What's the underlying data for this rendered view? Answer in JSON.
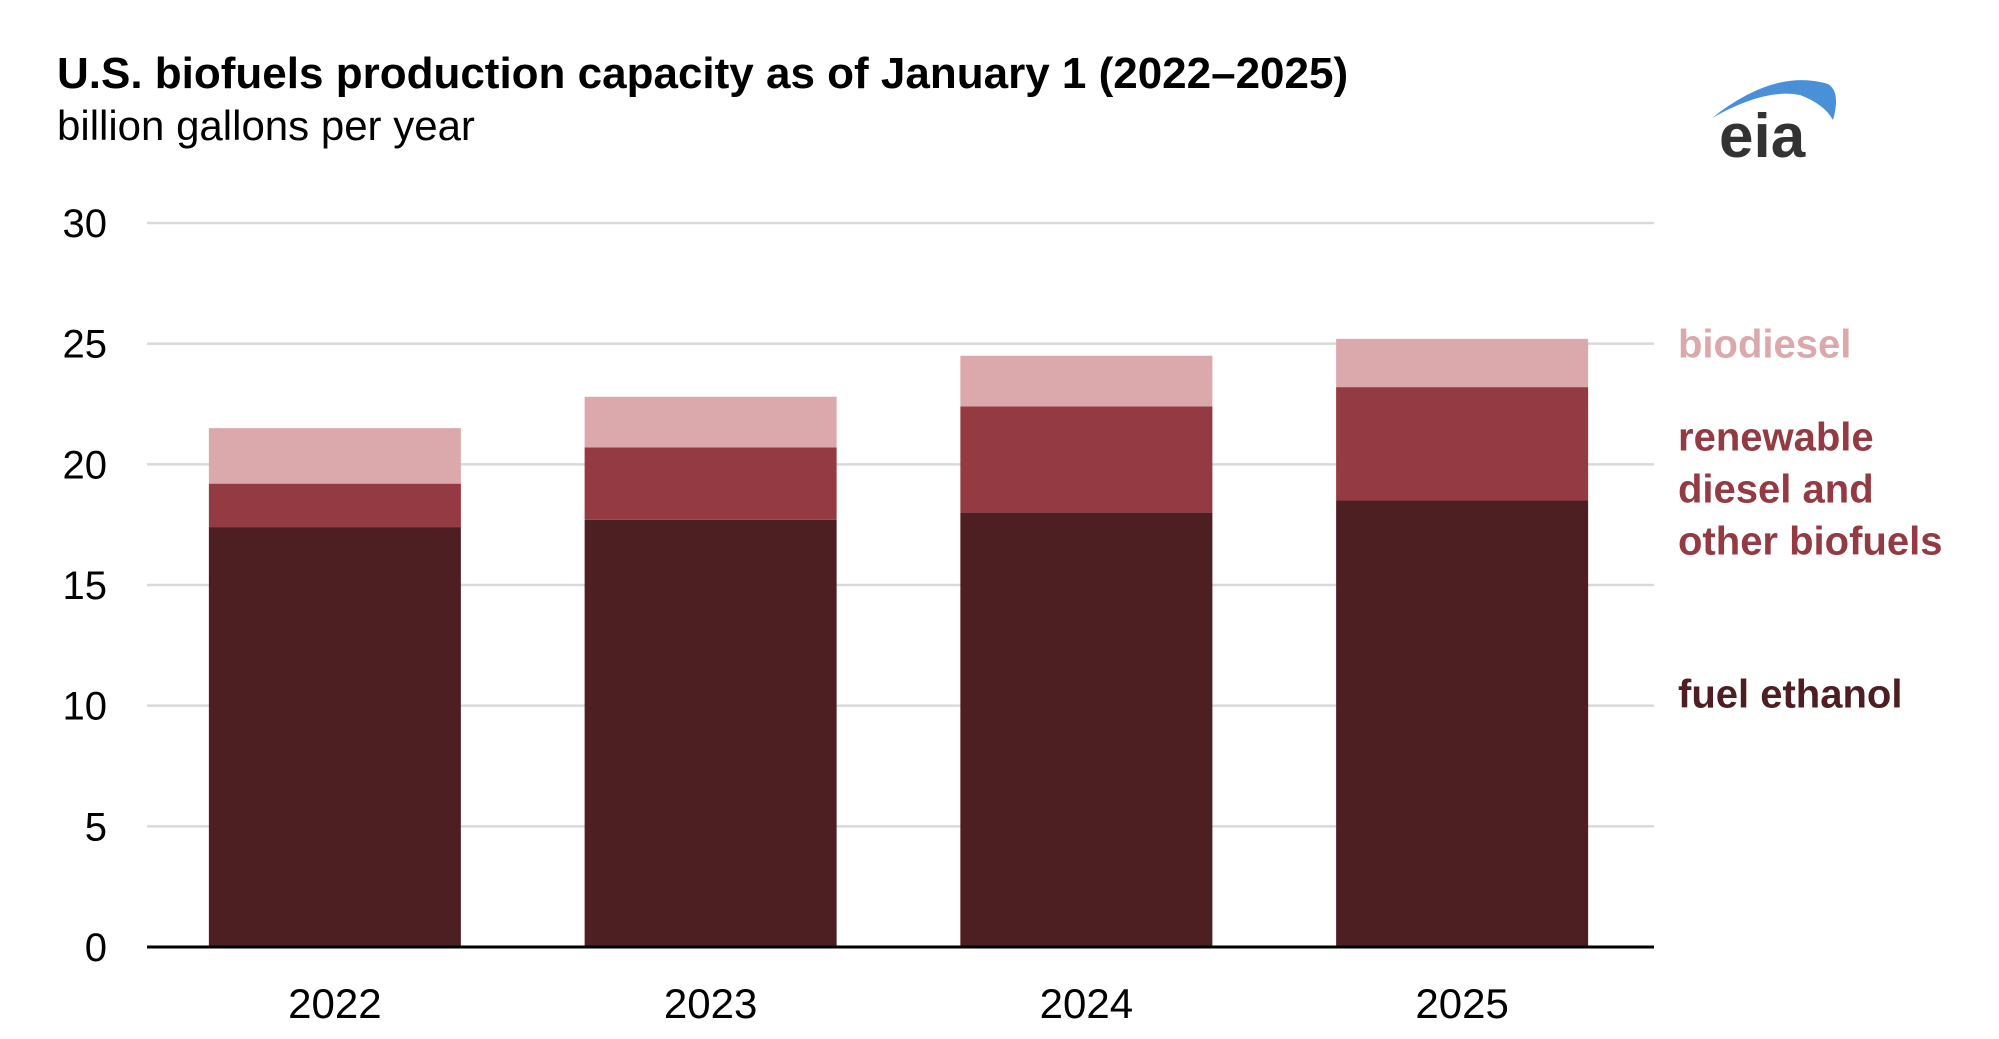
{
  "logo": {
    "text": "eia",
    "swoosh_color": "#4a90d9",
    "text_color": "#333333"
  },
  "chart_data": {
    "type": "bar",
    "stacked": true,
    "title": "U.S. biofuels production capacity as of January 1 (2022–2025)",
    "subtitle": "billion gallons per year",
    "xlabel": "",
    "ylabel": "",
    "ylim": [
      0,
      30
    ],
    "yticks": [
      0,
      5,
      10,
      15,
      20,
      25,
      30
    ],
    "grid": true,
    "legend_position": "right, inline labels",
    "categories": [
      "2022",
      "2023",
      "2024",
      "2025"
    ],
    "series": [
      {
        "name": "fuel ethanol",
        "color": "#4d1f23",
        "values": [
          17.4,
          17.7,
          18.0,
          18.5
        ]
      },
      {
        "name": "renewable diesel and other biofuels",
        "label_lines": [
          "renewable",
          "diesel and",
          "other biofuels"
        ],
        "color": "#943a42",
        "values": [
          1.8,
          3.0,
          4.4,
          4.7
        ]
      },
      {
        "name": "biodiesel",
        "color": "#dba8ac",
        "values": [
          2.3,
          2.1,
          2.1,
          2.0
        ]
      }
    ]
  }
}
